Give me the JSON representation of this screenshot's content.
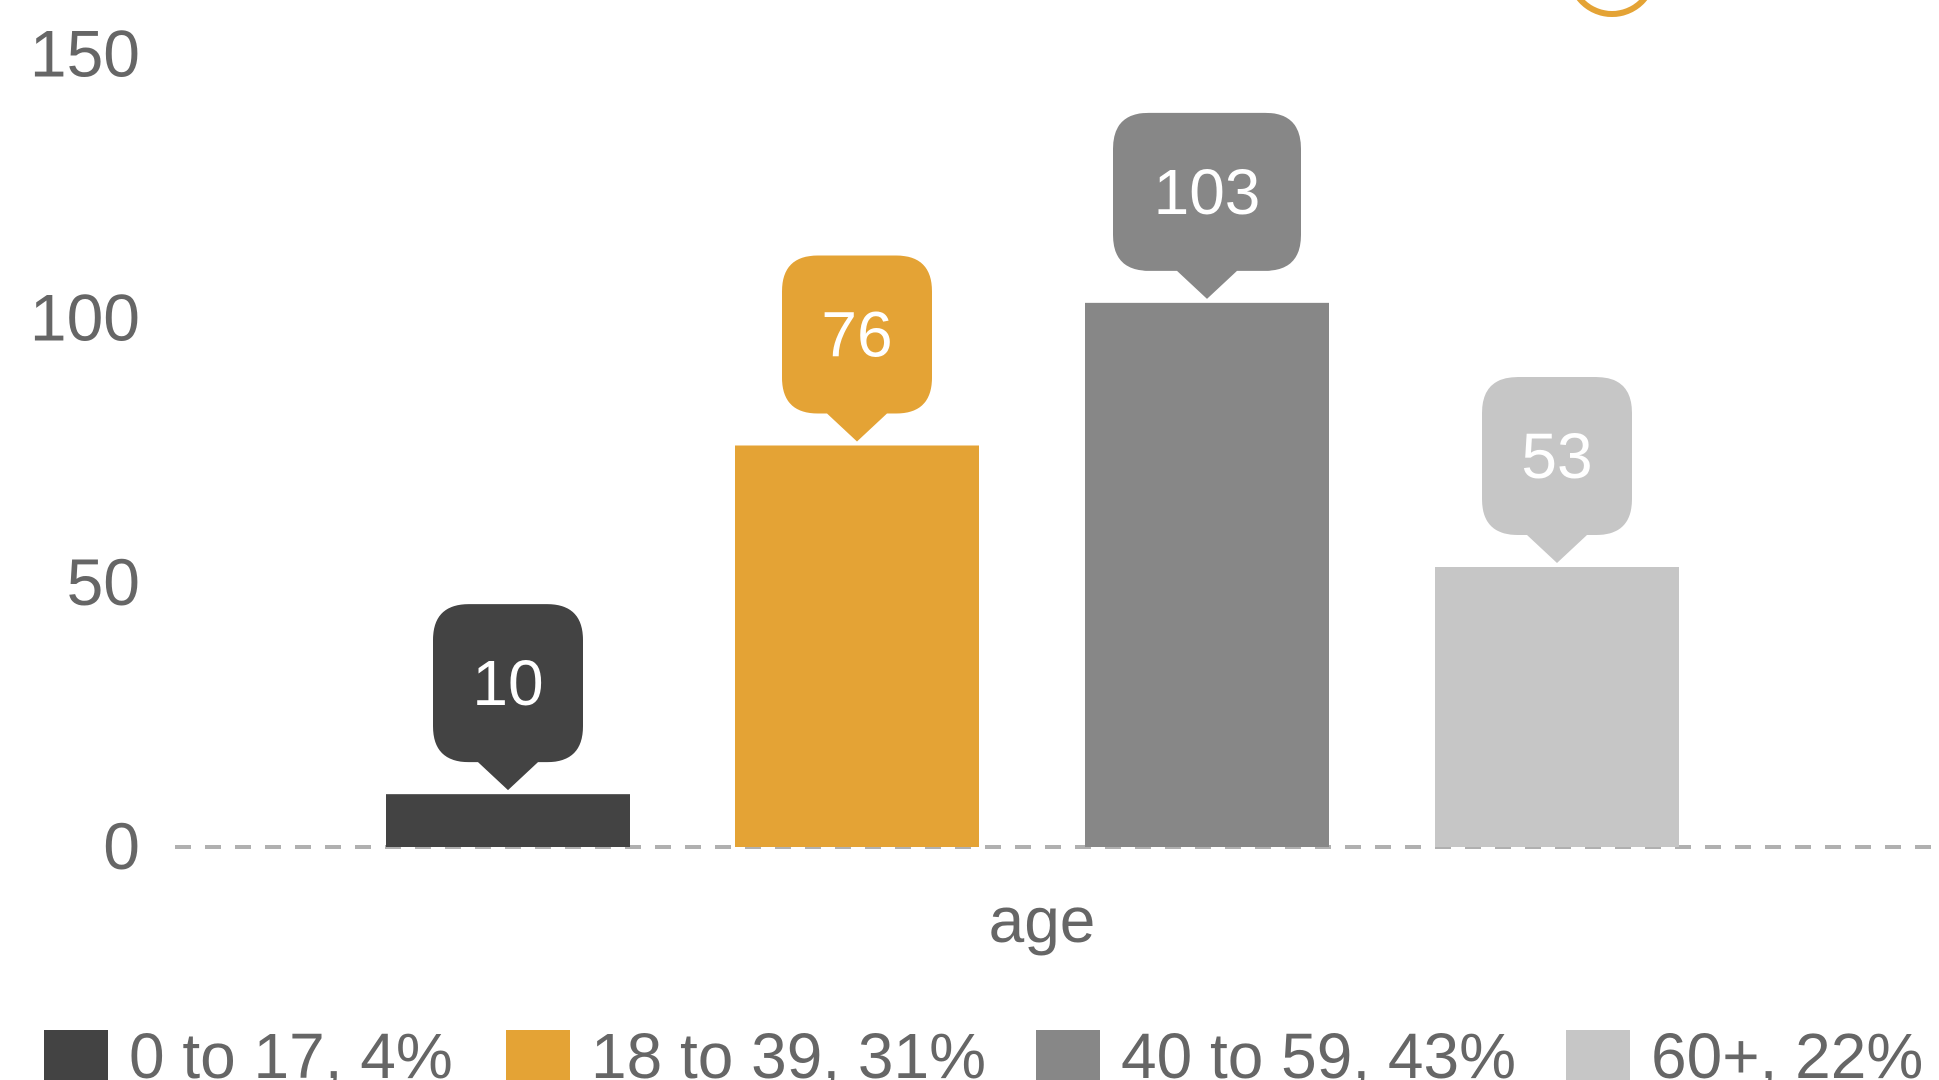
{
  "chart_data": {
    "type": "bar",
    "xlabel": "age",
    "ylabel": "",
    "ylim": [
      0,
      150
    ],
    "yticks": [
      0,
      50,
      100,
      150
    ],
    "grid": false,
    "legend_position": "bottom",
    "categories": [
      "0 to 17",
      "18 to 39",
      "40 to 59",
      "60+"
    ],
    "values": [
      10,
      76,
      103,
      53
    ],
    "data_labels": [
      "10",
      "76",
      "103",
      "53"
    ],
    "legend": [
      "0 to 17, 4%",
      "18 to 39, 31%",
      "40 to 59, 43%",
      "60+, 22%"
    ],
    "colors": [
      "#434343",
      "#e4a335",
      "#878787",
      "#c6c6c6"
    ],
    "baseline_color": "#b0b0b0",
    "accent_circle_color": "#e4a335"
  }
}
